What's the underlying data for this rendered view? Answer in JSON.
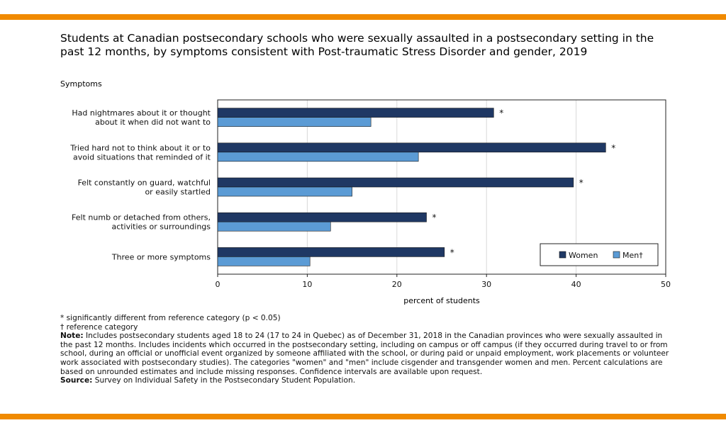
{
  "title": "Students at Canadian postsecondary schools who were sexually assaulted in a postsecondary setting in the past 12 months, by symptoms consistent with Post-traumatic Stress Disorder and gender, 2019",
  "chart_data": {
    "type": "bar",
    "orientation": "horizontal",
    "title": "Students at Canadian postsecondary schools who were sexually assaulted in a postsecondary setting in the past 12 months, by symptoms consistent with Post-traumatic Stress Disorder and gender, 2019",
    "ylabel": "Symptoms",
    "xlabel": "percent of students",
    "xlim": [
      0,
      50
    ],
    "xticks": [
      "0",
      "10",
      "20",
      "30",
      "40",
      "50"
    ],
    "grid": true,
    "legend_position": "bottom-right",
    "categories": [
      [
        "Had nightmares about it or thought",
        "about it when did not want to"
      ],
      [
        "Tried hard not to think about it or to",
        "avoid situations that reminded of it"
      ],
      [
        "Felt constantly on guard, watchful",
        "or easily startled"
      ],
      [
        "Felt numb or detached from others,",
        "activities or surroundings"
      ],
      [
        "Three or more symptoms"
      ]
    ],
    "series": [
      {
        "name": "Women",
        "color": "#1f3864",
        "values": [
          30.8,
          43.3,
          39.7,
          23.3,
          25.3
        ],
        "markers": [
          "*",
          "*",
          "*",
          "*",
          "*"
        ]
      },
      {
        "name": "Men†",
        "color": "#5b9bd5",
        "values": [
          17.1,
          22.4,
          15.0,
          12.6,
          10.3
        ],
        "markers": [
          "",
          "",
          "",
          "",
          ""
        ]
      }
    ]
  },
  "notes": {
    "significance": "* significantly different from reference category (p < 0.05)",
    "reference": "† reference category",
    "note_label": "Note:",
    "note_text": " Includes postsecondary students aged 18 to 24 (17 to 24 in Quebec) as of December 31, 2018 in the Canadian provinces who were sexually assaulted in the past 12 months. Includes incidents which occurred in the postsecondary setting, including on campus or off campus (if they occurred during travel to or from school, during an official or unofficial event organized by someone affiliated with the school, or during paid or unpaid employment, work placements or volunteer work associated with postsecondary studies). The categories \"women\" and \"men\" include cisgender and transgender women and men.  Percent calculations are based on unrounded estimates and include missing responses. Confidence intervals are available upon request.",
    "source_label": "Source:",
    "source_text": " Survey on Individual Safety in the Postsecondary Student Population."
  },
  "colors": {
    "accent": "#f08a00",
    "women": "#1f3864",
    "men": "#5b9bd5"
  }
}
